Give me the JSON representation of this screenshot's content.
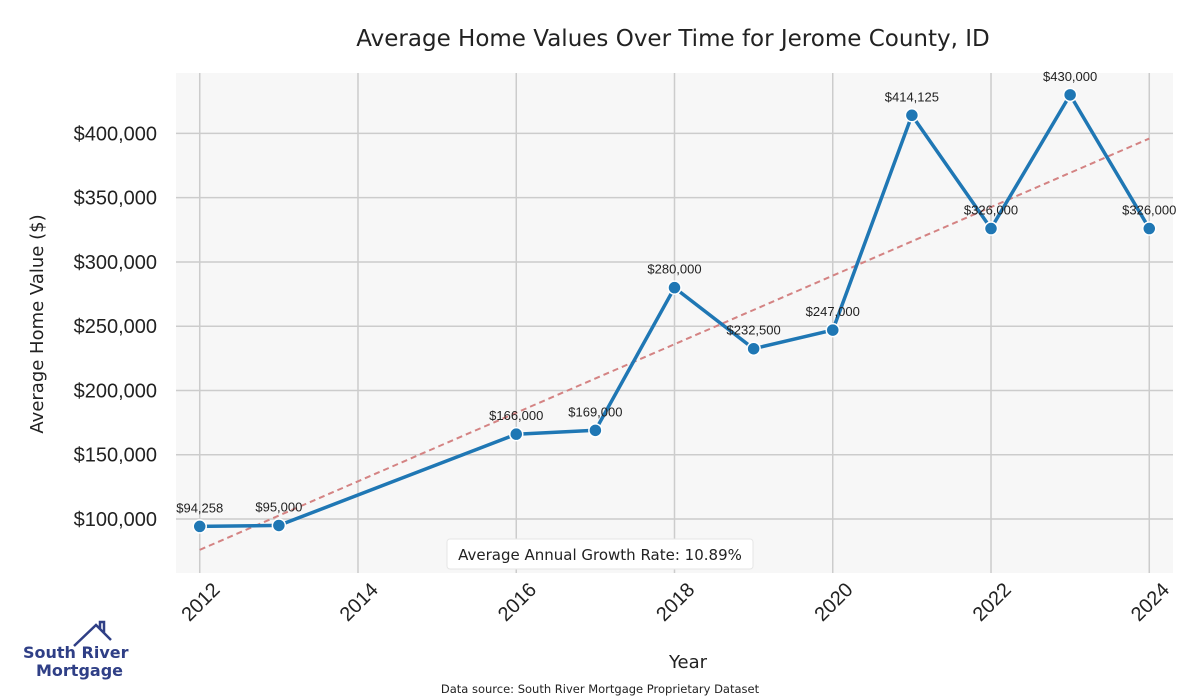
{
  "chart_data": {
    "type": "line",
    "title": "Average Home Values Over Time for Jerome County, ID",
    "xlabel": "Year",
    "ylabel": "Average Home Value ($)",
    "x": [
      2012,
      2013,
      2016,
      2017,
      2018,
      2019,
      2020,
      2021,
      2022,
      2023,
      2024
    ],
    "series": [
      {
        "values": [
          94258,
          95000,
          166000,
          169000,
          280000,
          232500,
          247000,
          414125,
          326000,
          430000,
          326000
        ],
        "labels": [
          "$94,258",
          "$95,000",
          "$166,000",
          "$169,000",
          "$280,000",
          "$232,500",
          "$247,000",
          "$414,125",
          "$326,000",
          "$430,000",
          "$326,000"
        ],
        "color": "#1f77b4"
      }
    ],
    "trend_line": {
      "x": [
        2012,
        2024
      ],
      "values": [
        76000,
        396000
      ],
      "color": "#d48383",
      "style": "dashed"
    },
    "xticks": [
      2012,
      2014,
      2016,
      2018,
      2020,
      2022,
      2024
    ],
    "xtick_labels": [
      "2012",
      "2014",
      "2016",
      "2018",
      "2020",
      "2022",
      "2024"
    ],
    "yticks": [
      100000,
      150000,
      200000,
      250000,
      300000,
      350000,
      400000
    ],
    "ytick_labels": [
      "$100,000",
      "$150,000",
      "$200,000",
      "$250,000",
      "$300,000",
      "$350,000",
      "$400,000"
    ],
    "xlim": [
      2011.7,
      2024.3
    ],
    "ylim": [
      58000,
      447000
    ],
    "grid": true,
    "annotation": "Average Annual Growth Rate: 10.89%",
    "source": "Data source: South River Mortgage Proprietary Dataset"
  },
  "logo": {
    "line1": "South River",
    "line2": "Mortgage"
  },
  "colors": {
    "plot_bg": "#f7f7f7",
    "grid": "#cccccc",
    "logo": "#2f3f86"
  }
}
